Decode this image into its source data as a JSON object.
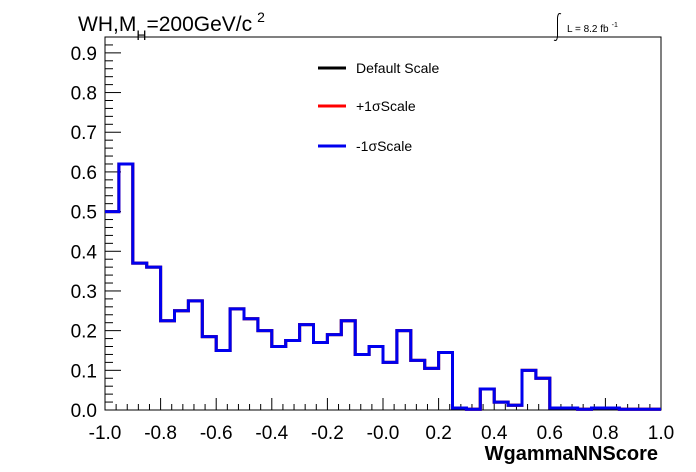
{
  "chart_data": {
    "type": "line",
    "title": "WH,M",
    "title_sub": "H",
    "title_rest": "=200GeV/c",
    "title_sup": "2",
    "lumi_label": "L = 8.2 fb",
    "lumi_sup": "-1",
    "xlabel": "WgammaNNScore",
    "ylabel": "",
    "xlim": [
      -1.0,
      1.0
    ],
    "ylim": [
      0.0,
      0.94
    ],
    "xticks": [
      -1.0,
      -0.8,
      -0.6,
      -0.4,
      -0.2,
      0.0,
      0.2,
      0.4,
      0.6,
      0.8,
      1.0
    ],
    "xtick_labels": [
      "-1.0",
      "-0.8",
      "-0.6",
      "-0.4",
      "-0.2",
      "-0.0",
      "0.2",
      "0.4",
      "0.6",
      "0.8",
      "1.0"
    ],
    "yticks": [
      0.0,
      0.1,
      0.2,
      0.3,
      0.4,
      0.5,
      0.6,
      0.7,
      0.8,
      0.9
    ],
    "ytick_labels": [
      "0.0",
      "0.1",
      "0.2",
      "0.3",
      "0.4",
      "0.5",
      "0.6",
      "0.7",
      "0.8",
      "0.9"
    ],
    "grid": false,
    "legend_position": "top-center",
    "bin_width": 0.05,
    "bin_edges_start": -1.0,
    "series": [
      {
        "name": "Default Scale",
        "color": "#000000",
        "values": [
          0.5,
          0.62,
          0.37,
          0.36,
          0.225,
          0.25,
          0.275,
          0.185,
          0.15,
          0.255,
          0.23,
          0.2,
          0.16,
          0.175,
          0.215,
          0.17,
          0.19,
          0.225,
          0.14,
          0.16,
          0.12,
          0.2,
          0.125,
          0.105,
          0.145,
          0.005,
          0.002,
          0.053,
          0.02,
          0.012,
          0.1,
          0.08,
          0.005,
          0.005,
          0.002,
          0.005,
          0.005,
          0.002,
          0.002,
          0.002
        ]
      },
      {
        "name": "+1σScale",
        "color": "#ff0000",
        "values": [
          0.5,
          0.62,
          0.37,
          0.36,
          0.225,
          0.25,
          0.275,
          0.185,
          0.15,
          0.255,
          0.23,
          0.2,
          0.16,
          0.175,
          0.215,
          0.17,
          0.19,
          0.225,
          0.14,
          0.16,
          0.12,
          0.2,
          0.125,
          0.105,
          0.145,
          0.005,
          0.002,
          0.053,
          0.02,
          0.012,
          0.1,
          0.08,
          0.005,
          0.005,
          0.002,
          0.005,
          0.005,
          0.002,
          0.002,
          0.002
        ]
      },
      {
        "name": "-1σScale",
        "color": "#0000ee",
        "values": [
          0.5,
          0.62,
          0.37,
          0.36,
          0.225,
          0.25,
          0.275,
          0.185,
          0.15,
          0.255,
          0.23,
          0.2,
          0.16,
          0.175,
          0.215,
          0.17,
          0.19,
          0.225,
          0.14,
          0.16,
          0.12,
          0.2,
          0.125,
          0.105,
          0.145,
          0.005,
          0.002,
          0.053,
          0.02,
          0.012,
          0.1,
          0.08,
          0.005,
          0.005,
          0.002,
          0.005,
          0.005,
          0.002,
          0.002,
          0.002
        ]
      }
    ]
  }
}
